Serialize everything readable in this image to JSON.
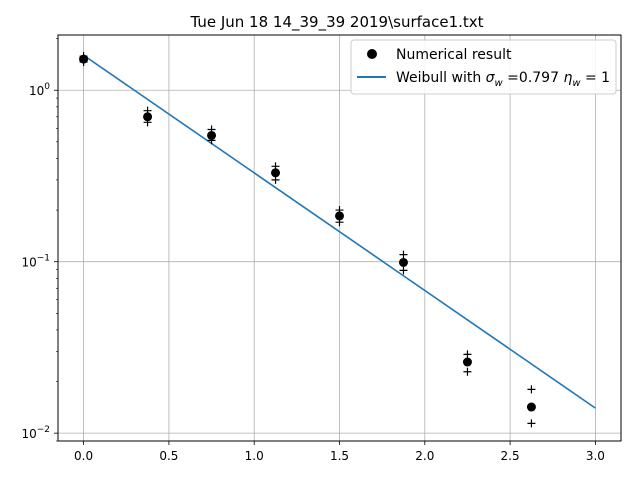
{
  "chart_data": {
    "type": "scatter",
    "title": "Tue Jun 18 14_39_39 2019\\surface1.txt",
    "xlabel": "",
    "ylabel": "",
    "xlim": [
      -0.15,
      3.15
    ],
    "ylim": [
      0.009,
      2.1
    ],
    "yscale": "log",
    "grid": true,
    "legend_position": "top-right",
    "x_ticks": [
      {
        "value": 0.0,
        "label": "0.0"
      },
      {
        "value": 0.5,
        "label": "0.5"
      },
      {
        "value": 1.0,
        "label": "1.0"
      },
      {
        "value": 1.5,
        "label": "1.5"
      },
      {
        "value": 2.0,
        "label": "2.0"
      },
      {
        "value": 2.5,
        "label": "2.5"
      },
      {
        "value": 3.0,
        "label": "3.0"
      }
    ],
    "y_ticks": [
      {
        "value": 1,
        "base": "10",
        "exp": "0"
      },
      {
        "value": 0.1,
        "base": "10",
        "exp": "−1"
      },
      {
        "value": 0.01,
        "base": "10",
        "exp": "−2"
      }
    ],
    "series": [
      {
        "name": "Numerical result",
        "kind": "points",
        "color": "#000000",
        "x": [
          0.0,
          0.375,
          0.75,
          1.125,
          1.5,
          1.875,
          2.25,
          2.625
        ],
        "y": [
          1.52,
          0.7,
          0.545,
          0.33,
          0.185,
          0.099,
          0.026,
          0.0142
        ],
        "upper": [
          1.58,
          0.76,
          0.59,
          0.36,
          0.2,
          0.11,
          0.0288,
          0.018
        ],
        "lower": [
          1.46,
          0.65,
          0.51,
          0.3,
          0.17,
          0.089,
          0.0228,
          0.0114
        ]
      },
      {
        "name": "Weibull with σ_w =0.797 η_w = 1",
        "kind": "line",
        "color": "#1f77b4",
        "x": [
          0.0,
          3.0
        ],
        "y": [
          1.6,
          0.014
        ]
      }
    ]
  },
  "legend": {
    "entries": [
      {
        "label": "Numerical result"
      },
      {
        "label_parts": [
          "Weibull with ",
          "σ",
          "w",
          " =0.797 ",
          "η",
          "w",
          " = 1"
        ]
      }
    ]
  }
}
